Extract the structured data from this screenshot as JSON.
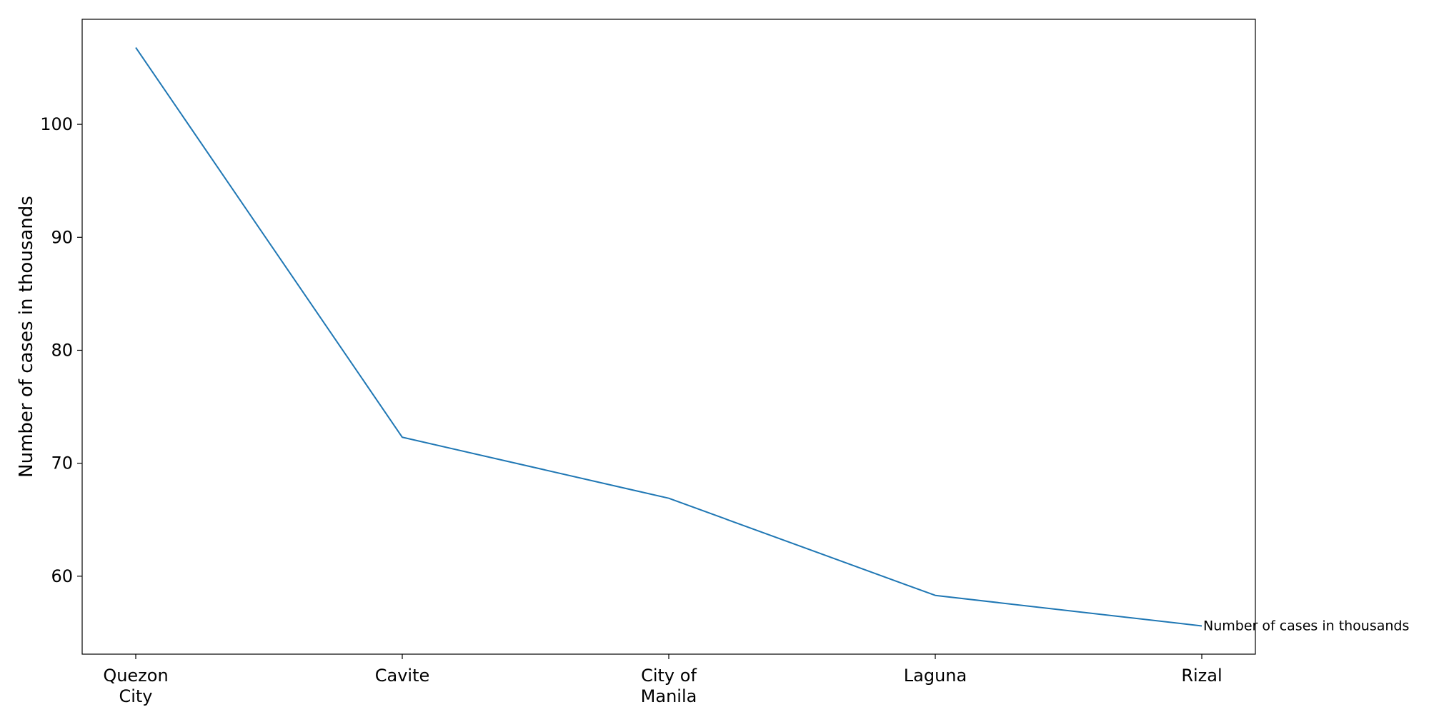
{
  "chart_data": {
    "type": "line",
    "title": "",
    "xlabel": "",
    "ylabel": "Number of cases in thousands",
    "categories": [
      [
        "Quezon",
        "City"
      ],
      [
        "Cavite"
      ],
      [
        "City of",
        "Manila"
      ],
      [
        "Laguna"
      ],
      [
        "Rizal"
      ]
    ],
    "series": [
      {
        "name": "Number of cases in thousands",
        "values": [
          106.8,
          72.3,
          66.9,
          58.3,
          55.6
        ],
        "color": "#1f77b4"
      }
    ],
    "ylim": [
      53.1,
      109.3
    ],
    "yticks": [
      60,
      70,
      80,
      90,
      100
    ],
    "grid": false,
    "legend": "none; series name shown as inline label at end of line"
  }
}
